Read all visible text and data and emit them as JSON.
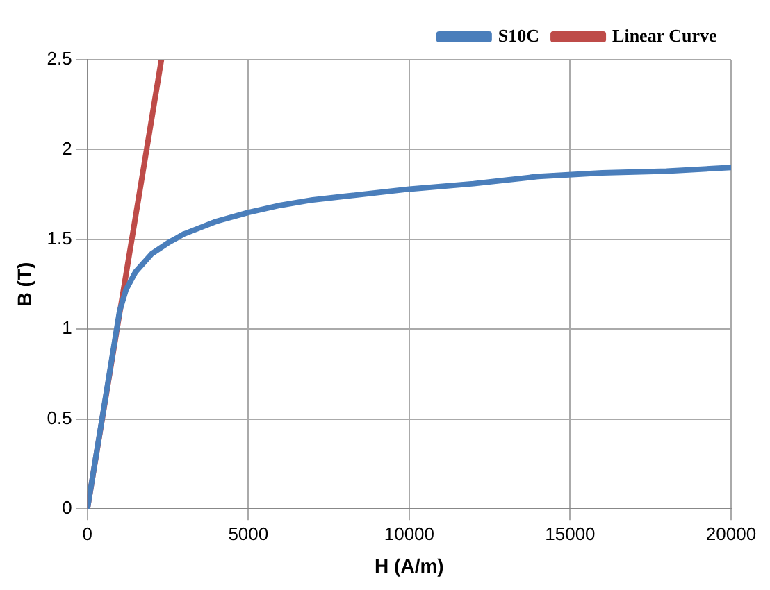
{
  "chart_data": {
    "type": "line",
    "xlabel": "H (A/m)",
    "ylabel": "B (T)",
    "xlim": [
      0,
      20000
    ],
    "xticks": [
      0,
      5000,
      10000,
      15000,
      20000
    ],
    "ylim": [
      0,
      2.5
    ],
    "yticks": [
      0,
      0.5,
      1,
      1.5,
      2,
      2.5
    ],
    "grid": true,
    "legend": "top right",
    "marker": "none",
    "line_style": "solid",
    "series": [
      {
        "name": "S10C",
        "color": "#4a7ebb",
        "x": [
          0,
          500,
          1000,
          1200,
          1500,
          2000,
          2500,
          3000,
          4000,
          5000,
          6000,
          7000,
          8000,
          10000,
          12000,
          14000,
          16000,
          18000,
          20000
        ],
        "values": [
          0,
          0.55,
          1.1,
          1.22,
          1.32,
          1.42,
          1.48,
          1.53,
          1.6,
          1.65,
          1.69,
          1.72,
          1.74,
          1.78,
          1.81,
          1.85,
          1.87,
          1.88,
          1.9
        ]
      },
      {
        "name": "Linear Curve",
        "color": "#be4b48",
        "x": [
          0,
          2300
        ],
        "values": [
          0,
          2.5
        ]
      }
    ]
  }
}
